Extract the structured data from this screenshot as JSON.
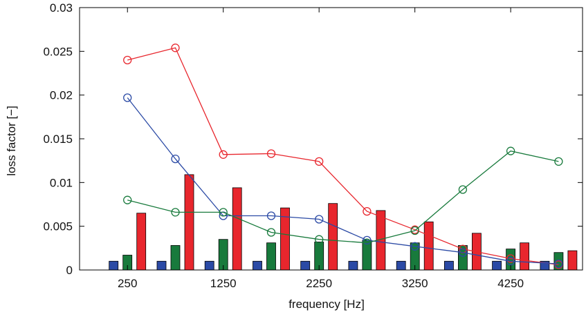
{
  "chart_data": {
    "type": "bar",
    "title": "",
    "xlabel": "frequency [Hz]",
    "ylabel": "loss factor [−]",
    "xlim": [
      -250,
      5000
    ],
    "ylim": [
      0,
      0.03
    ],
    "xticks": [
      250,
      1250,
      2250,
      3250,
      4250
    ],
    "xtick_labels": [
      "250",
      "1250",
      "2250",
      "3250",
      "4250"
    ],
    "yticks": [
      0,
      0.005,
      0.01,
      0.015,
      0.02,
      0.025,
      0.03
    ],
    "ytick_labels": [
      "0",
      "0.005",
      "0.01",
      "0.015",
      "0.02",
      "0.025",
      "0.03"
    ],
    "grid": false,
    "legend": "none",
    "x": [
      250,
      750,
      1250,
      1750,
      2250,
      2750,
      3250,
      3750,
      4250,
      4750
    ],
    "bar_series": [
      {
        "color": "#2b4aa5",
        "values": [
          0.001,
          0.001,
          0.001,
          0.001,
          0.001,
          0.001,
          0.001,
          0.001,
          0.001,
          0.001
        ]
      },
      {
        "color": "#187a3c",
        "values": [
          0.0017,
          0.0028,
          0.0035,
          0.0031,
          0.0032,
          0.0034,
          0.0031,
          0.0028,
          0.0024,
          0.002
        ]
      },
      {
        "color": "#e8262d",
        "values": [
          0.0065,
          0.0109,
          0.0094,
          0.0071,
          0.0076,
          0.0068,
          0.0055,
          0.0042,
          0.0031,
          0.0022
        ]
      }
    ],
    "line_series": [
      {
        "color": "#e8262d",
        "marker": "circle",
        "values": [
          0.024,
          0.0254,
          0.0132,
          0.0133,
          0.0124,
          0.0067,
          0.0046,
          0.0024,
          0.0013,
          0.0006
        ]
      },
      {
        "color": "#2b4aa5",
        "marker": "circle",
        "values": [
          0.0197,
          0.0127,
          0.0062,
          0.0062,
          0.0058,
          0.0034,
          0.0027,
          0.002,
          0.001,
          0.0007
        ]
      },
      {
        "color": "#187a3c",
        "marker": "circle",
        "values": [
          0.008,
          0.0066,
          0.0066,
          0.0043,
          0.0035,
          0.0031,
          0.0045,
          0.0092,
          0.0136,
          0.0124
        ]
      }
    ]
  }
}
